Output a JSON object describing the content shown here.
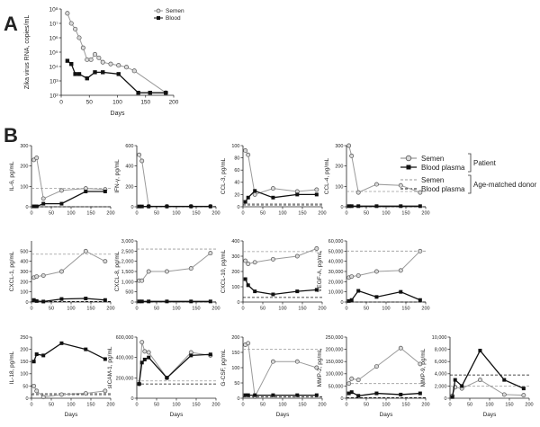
{
  "figure": {
    "panel_labels": [
      "A",
      "B"
    ],
    "colors": {
      "semen": "#9a9a9a",
      "blood": "#111111",
      "ref_semen": "#9a9a9a",
      "ref_blood": "#111111"
    }
  },
  "legend_b": {
    "semen": "Semen",
    "blood_plasma": "Blood plasma",
    "patient": "Patient",
    "ref_semen": "Semen",
    "ref_blood_plasma": "Blood plasma",
    "age_matched_donor": "Age-matched donor"
  },
  "chart_data": [
    {
      "type": "line",
      "panel": "A",
      "title": "",
      "xlabel": "Days",
      "ylabel": "Zika virus RNA, copies/mL",
      "yscale": "log",
      "xlim": [
        0,
        200
      ],
      "ylim": [
        100,
        100000000
      ],
      "xticks": [
        "0",
        "50",
        "100",
        "150",
        "200"
      ],
      "yticks": [
        "10²",
        "10³",
        "10⁴",
        "10⁵",
        "10⁶",
        "10⁷",
        "10⁸"
      ],
      "legend": {
        "position": "top-right",
        "entries": [
          "Semen",
          "Blood"
        ]
      },
      "series": [
        {
          "name": "Semen",
          "marker": "circle",
          "x": [
            11,
            18,
            25,
            32,
            39,
            46,
            53,
            60,
            67,
            74,
            88,
            102,
            116,
            130,
            186
          ],
          "y": [
            50000000,
            10000000,
            4000000,
            1000000,
            200000,
            30000,
            30000,
            70000,
            40000,
            20000,
            15000,
            12000,
            9000,
            5000,
            150
          ]
        },
        {
          "name": "Blood",
          "marker": "square",
          "x": [
            11,
            18,
            25,
            32,
            46,
            60,
            74,
            102,
            137,
            158,
            186
          ],
          "y": [
            25000,
            15000,
            3000,
            3000,
            1500,
            4000,
            4000,
            3000,
            150,
            150,
            150
          ]
        }
      ]
    },
    {
      "type": "line",
      "panel": "B",
      "ylabel": "IL-6, pg/mL",
      "xlabel": "",
      "xlim": [
        0,
        200
      ],
      "ylim": [
        0,
        300
      ],
      "xticks": [
        "0",
        "50",
        "100",
        "150",
        "200"
      ],
      "yticks": [
        "0",
        "100",
        "200",
        "300"
      ],
      "ref_semen": 90,
      "ref_blood": 0,
      "series": [
        {
          "name": "Semen",
          "x": [
            6,
            13,
            30,
            76,
            137,
            186
          ],
          "y": [
            230,
            240,
            40,
            80,
            90,
            85
          ]
        },
        {
          "name": "Blood plasma",
          "x": [
            6,
            13,
            30,
            76,
            137,
            186
          ],
          "y": [
            2,
            2,
            15,
            15,
            75,
            75
          ]
        }
      ]
    },
    {
      "type": "line",
      "panel": "B",
      "ylabel": "IFN-γ, pg/mL",
      "xlabel": "",
      "xlim": [
        0,
        200
      ],
      "ylim": [
        0,
        600
      ],
      "xticks": [
        "0",
        "50",
        "100",
        "150",
        "200"
      ],
      "yticks": [
        "0",
        "200",
        "400",
        "600"
      ],
      "ref_semen": 5,
      "ref_blood": 0,
      "series": [
        {
          "name": "Semen",
          "x": [
            6,
            13,
            30,
            76,
            137,
            186
          ],
          "y": [
            510,
            450,
            5,
            5,
            5,
            5
          ]
        },
        {
          "name": "Blood plasma",
          "x": [
            6,
            13,
            30,
            76,
            137,
            186
          ],
          "y": [
            3,
            3,
            3,
            3,
            3,
            3
          ]
        }
      ]
    },
    {
      "type": "line",
      "panel": "B",
      "ylabel": "CCL-3, pg/mL",
      "xlabel": "",
      "xlim": [
        0,
        200
      ],
      "ylim": [
        0,
        100
      ],
      "xticks": [
        "0",
        "50",
        "100",
        "150",
        "200"
      ],
      "yticks": [
        "0",
        "20",
        "40",
        "60",
        "80",
        "100"
      ],
      "ref_semen": 5,
      "ref_blood": 3,
      "series": [
        {
          "name": "Semen",
          "x": [
            6,
            13,
            30,
            76,
            137,
            186
          ],
          "y": [
            92,
            85,
            20,
            30,
            25,
            28
          ]
        },
        {
          "name": "Blood plasma",
          "x": [
            6,
            13,
            30,
            76,
            137,
            186
          ],
          "y": [
            8,
            15,
            26,
            15,
            20,
            20
          ]
        }
      ]
    },
    {
      "type": "line",
      "panel": "B",
      "ylabel": "CCL-4, pg/mL",
      "xlabel": "",
      "xlim": [
        0,
        200
      ],
      "ylim": [
        0,
        300
      ],
      "xticks": [
        "0",
        "50",
        "100",
        "150",
        "200"
      ],
      "yticks": [
        "0",
        "100",
        "200",
        "300"
      ],
      "ref_semen": 75,
      "ref_blood": 0,
      "series": [
        {
          "name": "Semen",
          "x": [
            6,
            13,
            30,
            76,
            137,
            186
          ],
          "y": [
            300,
            250,
            70,
            110,
            105,
            70
          ]
        },
        {
          "name": "Blood plasma",
          "x": [
            6,
            13,
            30,
            76,
            137,
            186
          ],
          "y": [
            3,
            3,
            3,
            3,
            3,
            3
          ]
        }
      ]
    },
    {
      "type": "line",
      "panel": "B",
      "ylabel": "CXCL-1, pg/mL",
      "xlabel": "",
      "xlim": [
        0,
        200
      ],
      "ylim": [
        0,
        600
      ],
      "xticks": [
        "0",
        "50",
        "100",
        "150",
        "200"
      ],
      "yticks": [
        "0",
        "100",
        "200",
        "300",
        "400",
        "500"
      ],
      "ref_semen": 470,
      "ref_blood": 5,
      "series": [
        {
          "name": "Semen",
          "x": [
            6,
            13,
            30,
            76,
            137,
            186
          ],
          "y": [
            240,
            250,
            260,
            300,
            500,
            400
          ]
        },
        {
          "name": "Blood plasma",
          "x": [
            6,
            13,
            30,
            76,
            137,
            186
          ],
          "y": [
            20,
            10,
            5,
            30,
            35,
            20
          ]
        }
      ]
    },
    {
      "type": "line",
      "panel": "B",
      "ylabel": "CXCL-8, pg/mL",
      "xlabel": "",
      "xlim": [
        0,
        200
      ],
      "ylim": [
        0,
        3000
      ],
      "xticks": [
        "0",
        "50",
        "100",
        "150",
        "200"
      ],
      "yticks": [
        "0",
        "500",
        "1,000",
        "1,500",
        "2,000",
        "2,500",
        "3,000"
      ],
      "ref_semen": 2600,
      "ref_blood": 5,
      "series": [
        {
          "name": "Semen",
          "x": [
            6,
            13,
            30,
            76,
            137,
            186
          ],
          "y": [
            1050,
            1050,
            1500,
            1500,
            1650,
            2400
          ]
        },
        {
          "name": "Blood plasma",
          "x": [
            6,
            13,
            30,
            76,
            137,
            186
          ],
          "y": [
            30,
            30,
            30,
            30,
            30,
            30
          ]
        }
      ]
    },
    {
      "type": "line",
      "panel": "B",
      "ylabel": "CXCL-10, pg/mL",
      "xlabel": "",
      "xlim": [
        0,
        200
      ],
      "ylim": [
        0,
        400
      ],
      "xticks": [
        "0",
        "50",
        "100",
        "150",
        "200"
      ],
      "yticks": [
        "0",
        "100",
        "200",
        "300",
        "400"
      ],
      "ref_semen": 330,
      "ref_blood": 30,
      "series": [
        {
          "name": "Semen",
          "x": [
            6,
            13,
            30,
            76,
            137,
            186
          ],
          "y": [
            270,
            250,
            260,
            280,
            300,
            350
          ]
        },
        {
          "name": "Blood plasma",
          "x": [
            6,
            13,
            30,
            76,
            137,
            186
          ],
          "y": [
            150,
            110,
            70,
            50,
            70,
            80
          ]
        }
      ]
    },
    {
      "type": "line",
      "panel": "B",
      "ylabel": "VEGF-A, pg/mL",
      "xlabel": "",
      "xlim": [
        0,
        200
      ],
      "ylim": [
        0,
        60000
      ],
      "xticks": [
        "0",
        "50",
        "100",
        "150",
        "200"
      ],
      "yticks": [
        "0",
        "10,000",
        "20,000",
        "30,000",
        "40,000",
        "50,000",
        "60,000"
      ],
      "ref_semen": 50000,
      "ref_blood": 0,
      "series": [
        {
          "name": "Semen",
          "x": [
            6,
            13,
            30,
            76,
            137,
            186
          ],
          "y": [
            24000,
            25000,
            26000,
            30000,
            31000,
            50000
          ]
        },
        {
          "name": "Blood plasma",
          "x": [
            6,
            13,
            30,
            76,
            137,
            186
          ],
          "y": [
            1000,
            2000,
            11000,
            5000,
            10000,
            2000
          ]
        }
      ]
    },
    {
      "type": "line",
      "panel": "B",
      "ylabel": "IL-18, pg/mL",
      "xlabel": "Days",
      "xlim": [
        0,
        200
      ],
      "ylim": [
        0,
        250
      ],
      "xticks": [
        "0",
        "50",
        "100",
        "150",
        "200"
      ],
      "yticks": [
        "0",
        "50",
        "100",
        "150",
        "200",
        "250"
      ],
      "ref_semen": 20,
      "ref_blood": 15,
      "series": [
        {
          "name": "Semen",
          "x": [
            6,
            13,
            30,
            76,
            137,
            186
          ],
          "y": [
            50,
            30,
            5,
            15,
            20,
            30
          ]
        },
        {
          "name": "Blood plasma",
          "x": [
            6,
            13,
            30,
            76,
            137,
            186
          ],
          "y": [
            150,
            180,
            175,
            225,
            200,
            160
          ]
        }
      ]
    },
    {
      "type": "line",
      "panel": "B",
      "ylabel": "sICAM-1, pg/mL",
      "xlabel": "Days",
      "xlim": [
        0,
        200
      ],
      "ylim": [
        0,
        600000
      ],
      "xticks": [
        "0",
        "50",
        "100",
        "150",
        "200"
      ],
      "yticks": [
        "0",
        "200,000",
        "400,000",
        "600,000"
      ],
      "ref_semen": 170000,
      "ref_blood": 140000,
      "series": [
        {
          "name": "Semen",
          "x": [
            6,
            13,
            20,
            30,
            76,
            137,
            186
          ],
          "y": [
            140000,
            550000,
            460000,
            450000,
            200000,
            450000,
            420000
          ]
        },
        {
          "name": "Blood plasma",
          "x": [
            6,
            13,
            20,
            30,
            76,
            137,
            186
          ],
          "y": [
            140000,
            350000,
            380000,
            400000,
            200000,
            420000,
            430000
          ]
        }
      ]
    },
    {
      "type": "line",
      "panel": "B",
      "ylabel": "G-CSF, pg/mL",
      "xlabel": "Days",
      "xlim": [
        0,
        200
      ],
      "ylim": [
        0,
        200
      ],
      "xticks": [
        "0",
        "50",
        "100",
        "150",
        "200"
      ],
      "yticks": [
        "0",
        "50",
        "100",
        "150",
        "200"
      ],
      "ref_semen": 160,
      "ref_blood": 5,
      "series": [
        {
          "name": "Semen",
          "x": [
            6,
            13,
            30,
            76,
            137,
            186
          ],
          "y": [
            175,
            180,
            5,
            120,
            120,
            100
          ]
        },
        {
          "name": "Blood plasma",
          "x": [
            6,
            13,
            30,
            76,
            137,
            186
          ],
          "y": [
            10,
            10,
            10,
            10,
            10,
            10
          ]
        }
      ]
    },
    {
      "type": "line",
      "panel": "B",
      "ylabel": "MMP-2, pg/mL",
      "xlabel": "Days",
      "xlim": [
        0,
        200
      ],
      "ylim": [
        0,
        250000
      ],
      "xticks": [
        "0",
        "50",
        "100",
        "150",
        "200"
      ],
      "yticks": [
        "0",
        "50,000",
        "100,000",
        "150,000",
        "200,000",
        "250,000"
      ],
      "ref_semen": 60000,
      "ref_blood": 2000,
      "series": [
        {
          "name": "Semen",
          "x": [
            6,
            13,
            30,
            76,
            137,
            186
          ],
          "y": [
            60000,
            80000,
            75000,
            130000,
            205000,
            140000
          ]
        },
        {
          "name": "Blood plasma",
          "x": [
            6,
            13,
            30,
            76,
            137,
            186
          ],
          "y": [
            20000,
            25000,
            10000,
            20000,
            15000,
            20000
          ]
        }
      ]
    },
    {
      "type": "line",
      "panel": "B",
      "ylabel": "MMP-9, pg/mL",
      "xlabel": "Days",
      "xlim": [
        0,
        200
      ],
      "ylim": [
        0,
        10000
      ],
      "xticks": [
        "0",
        "50",
        "100",
        "150",
        "200"
      ],
      "yticks": [
        "0",
        "2,000",
        "4,000",
        "6,000",
        "8,000",
        "10,000"
      ],
      "ref_semen": 2000,
      "ref_blood": 3800,
      "series": [
        {
          "name": "Semen",
          "x": [
            6,
            13,
            30,
            76,
            137,
            186
          ],
          "y": [
            400,
            1800,
            1600,
            3000,
            600,
            500
          ]
        },
        {
          "name": "Blood plasma",
          "x": [
            6,
            13,
            30,
            76,
            137,
            186
          ],
          "y": [
            200,
            3000,
            2000,
            7800,
            3000,
            1600
          ]
        }
      ]
    }
  ]
}
